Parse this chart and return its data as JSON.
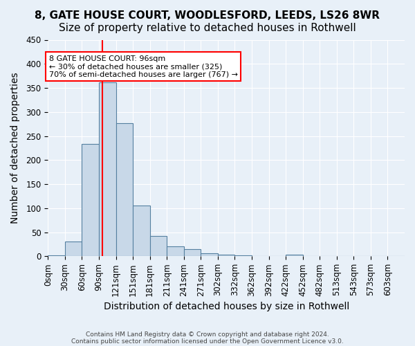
{
  "title1": "8, GATE HOUSE COURT, WOODLESFORD, LEEDS, LS26 8WR",
  "title2": "Size of property relative to detached houses in Rothwell",
  "xlabel": "Distribution of detached houses by size in Rothwell",
  "ylabel": "Number of detached properties",
  "footnote1": "Contains HM Land Registry data © Crown copyright and database right 2024.",
  "footnote2": "Contains public sector information licensed under the Open Government Licence v3.0.",
  "bin_edges": [
    0,
    30,
    60,
    90,
    120,
    150,
    180,
    210,
    240,
    270,
    300,
    330,
    360,
    390,
    420,
    450,
    480,
    510,
    540,
    570,
    600,
    630
  ],
  "bin_labels": [
    "0sqm",
    "30sqm",
    "60sqm",
    "90sqm",
    "121sqm",
    "151sqm",
    "181sqm",
    "211sqm",
    "241sqm",
    "271sqm",
    "302sqm",
    "332sqm",
    "362sqm",
    "392sqm",
    "422sqm",
    "452sqm",
    "482sqm",
    "513sqm",
    "543sqm",
    "573sqm",
    "603sqm"
  ],
  "bar_heights": [
    2,
    30,
    233,
    362,
    277,
    105,
    42,
    20,
    15,
    6,
    4,
    2,
    0,
    0,
    3,
    0,
    0,
    0,
    0,
    1,
    1
  ],
  "bar_color": "#c8d8e8",
  "bar_edge_color": "#5580a0",
  "red_line_x": 96,
  "annotation_text1": "8 GATE HOUSE COURT: 96sqm",
  "annotation_text2": "← 30% of detached houses are smaller (325)",
  "annotation_text3": "70% of semi-detached houses are larger (767) →",
  "annotation_box_color": "white",
  "annotation_box_edge": "red",
  "red_line_color": "red",
  "ylim": [
    0,
    450
  ],
  "background_color": "#e8f0f8",
  "grid_color": "white",
  "title1_fontsize": 11,
  "title2_fontsize": 11,
  "axis_fontsize": 10,
  "tick_fontsize": 8.5,
  "footnote_fontsize": 6.5,
  "footnote_color": "#444444"
}
